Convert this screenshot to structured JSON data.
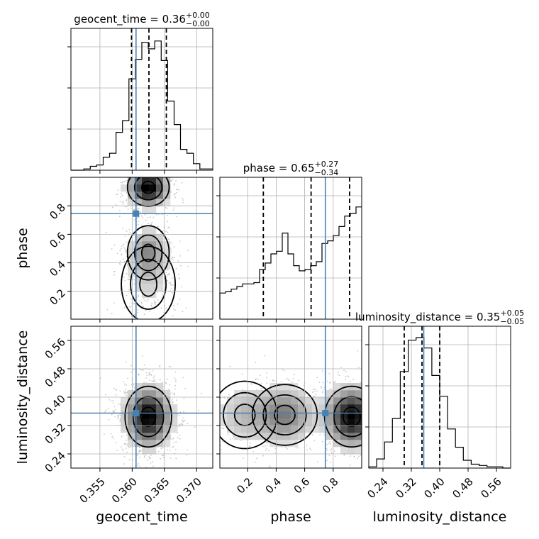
{
  "truth_color": "#4682b4",
  "chart_data": {
    "type": "corner",
    "parameters": [
      "geocent_time",
      "phase",
      "luminosity_distance"
    ],
    "truths": {
      "geocent_time": 0.3606,
      "phase": 0.745,
      "luminosity_distance": 0.355
    },
    "titles": [
      {
        "name": "geocent_time",
        "median": "0.36",
        "upper": "+0.00",
        "lower": "−0.00"
      },
      {
        "name": "phase",
        "median": "0.65",
        "upper": "+0.27",
        "lower": "−0.34"
      },
      {
        "name": "luminosity_distance",
        "median": "0.35",
        "upper": "+0.05",
        "lower": "−0.05"
      }
    ],
    "ranges": {
      "geocent_time": [
        0.3505,
        0.3725
      ],
      "phase": [
        0.005,
        1.0
      ],
      "luminosity_distance": [
        0.2,
        0.6
      ]
    },
    "ticks": {
      "geocent_time": [
        "0.355",
        "0.360",
        "0.365",
        "0.370"
      ],
      "phase": [
        "0.2",
        "0.4",
        "0.6",
        "0.8"
      ],
      "luminosity_distance": [
        "0.24",
        "0.32",
        "0.40",
        "0.48",
        "0.56"
      ]
    },
    "quantiles": {
      "geocent_time": [
        0.3599,
        0.3626,
        0.3653
      ],
      "phase": [
        0.31,
        0.645,
        0.915
      ],
      "luminosity_distance": [
        0.3,
        0.35,
        0.4
      ]
    },
    "histograms": {
      "geocent_time": {
        "x0": 0.3505,
        "x1": 0.3725,
        "counts": [
          0,
          0,
          0.01,
          0.03,
          0.04,
          0.1,
          0.13,
          0.29,
          0.38,
          0.7,
          0.85,
          0.98,
          0.93,
          0.99,
          0.84,
          0.53,
          0.35,
          0.16,
          0.13,
          0.05,
          0.01,
          0.01
        ]
      },
      "phase": {
        "x0": 0.005,
        "x1": 1.0,
        "counts": [
          0.2,
          0.21,
          0.23,
          0.25,
          0.27,
          0.27,
          0.28,
          0.38,
          0.43,
          0.5,
          0.52,
          0.66,
          0.5,
          0.41,
          0.37,
          0.38,
          0.41,
          0.44,
          0.58,
          0.6,
          0.64,
          0.71,
          0.79,
          0.81,
          0.86
        ]
      },
      "luminosity_distance": {
        "x0": 0.2,
        "x1": 0.6,
        "counts": [
          0.01,
          0.07,
          0.2,
          0.38,
          0.74,
          0.98,
          1.0,
          0.92,
          0.71,
          0.55,
          0.3,
          0.16,
          0.06,
          0.03,
          0.02,
          0.01,
          0.01,
          0
        ]
      }
    },
    "density_pairs": [
      {
        "x": "geocent_time",
        "y": "phase",
        "note": "bimodal in phase (~0.45, ~0.92)"
      },
      {
        "x": "geocent_time",
        "y": "luminosity_distance",
        "note": "single peak near (0.3625, 0.34)"
      },
      {
        "x": "phase",
        "y": "luminosity_distance",
        "note": "modes near phase 0.45 and 0.95"
      }
    ],
    "grid": true
  }
}
